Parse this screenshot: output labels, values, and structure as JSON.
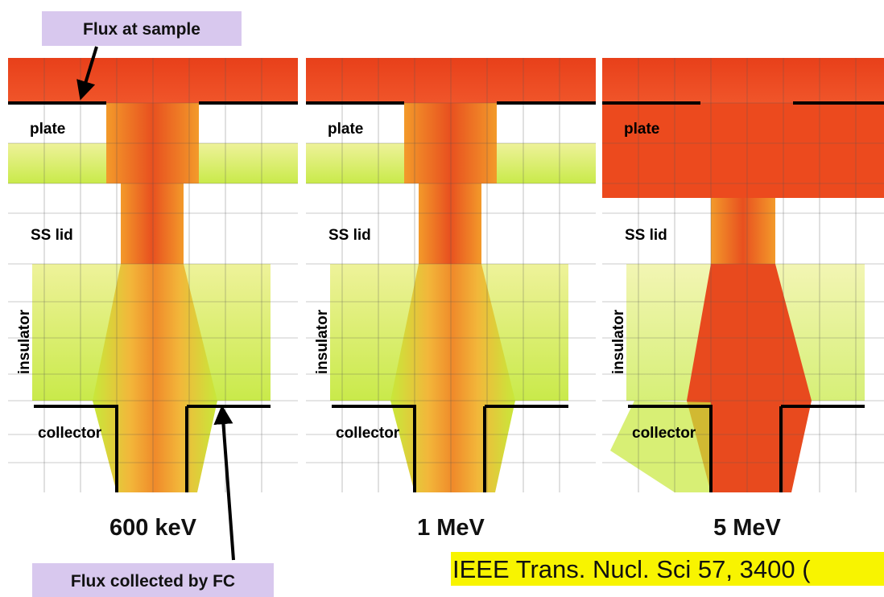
{
  "callouts": {
    "top": "Flux at sample",
    "bottom": "Flux collected by FC"
  },
  "panels": [
    {
      "energy": "600 keV",
      "labels": {
        "plate": "plate",
        "lid": "SS lid",
        "insulator": "insulator",
        "collector": "collector"
      }
    },
    {
      "energy": "1 MeV",
      "labels": {
        "plate": "plate",
        "lid": "SS lid",
        "insulator": "insulator",
        "collector": "collector"
      }
    },
    {
      "energy": "5 MeV",
      "labels": {
        "plate": "plate",
        "lid": "SS lid",
        "insulator": "insulator",
        "collector": "collector"
      }
    }
  ],
  "citation": "IEEE Trans. Nucl. Sci 57, 3400 ("
}
